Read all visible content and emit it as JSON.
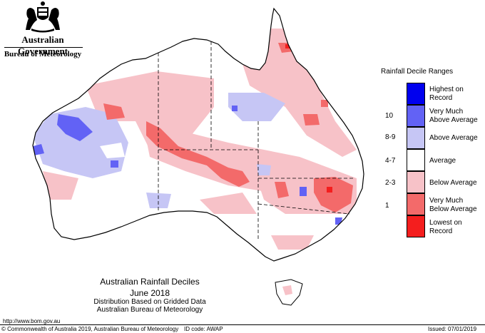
{
  "header": {
    "government": "Australian Government",
    "bureau": "Bureau of Meteorology"
  },
  "legend": {
    "title": "Rainfall Decile Ranges",
    "items": [
      {
        "label_line1": "Highest on",
        "label_line2": "Record",
        "range": "",
        "color": "#0000ee"
      },
      {
        "label_line1": "Very Much",
        "label_line2": "Above Average",
        "range": "10",
        "color": "#6262f5"
      },
      {
        "label_line1": "Above Average",
        "label_line2": "",
        "range": "8-9",
        "color": "#c6c6f5"
      },
      {
        "label_line1": "Average",
        "label_line2": "",
        "range": "4-7",
        "color": "#ffffff"
      },
      {
        "label_line1": "Below Average",
        "label_line2": "",
        "range": "2-3",
        "color": "#f7c2c8"
      },
      {
        "label_line1": "Very Much",
        "label_line2": "Below Average",
        "range": "1",
        "color": "#f36a6a"
      },
      {
        "label_line1": "Lowest on",
        "label_line2": "Record",
        "range": "",
        "color": "#f41e1e"
      }
    ]
  },
  "map": {
    "title": "Australian Rainfall Deciles",
    "period": "June 2018",
    "subtitle1": "Distribution Based on Gridded Data",
    "subtitle2": "Australian Bureau of Meteorology"
  },
  "footer": {
    "url": "http://www.bom.gov.au",
    "copyright": "© Commonwealth of Australia 2019, Australian Bureau of Meteorology",
    "id_code": "ID code: AWAP",
    "issued": "Issued: 07/01/2019"
  }
}
